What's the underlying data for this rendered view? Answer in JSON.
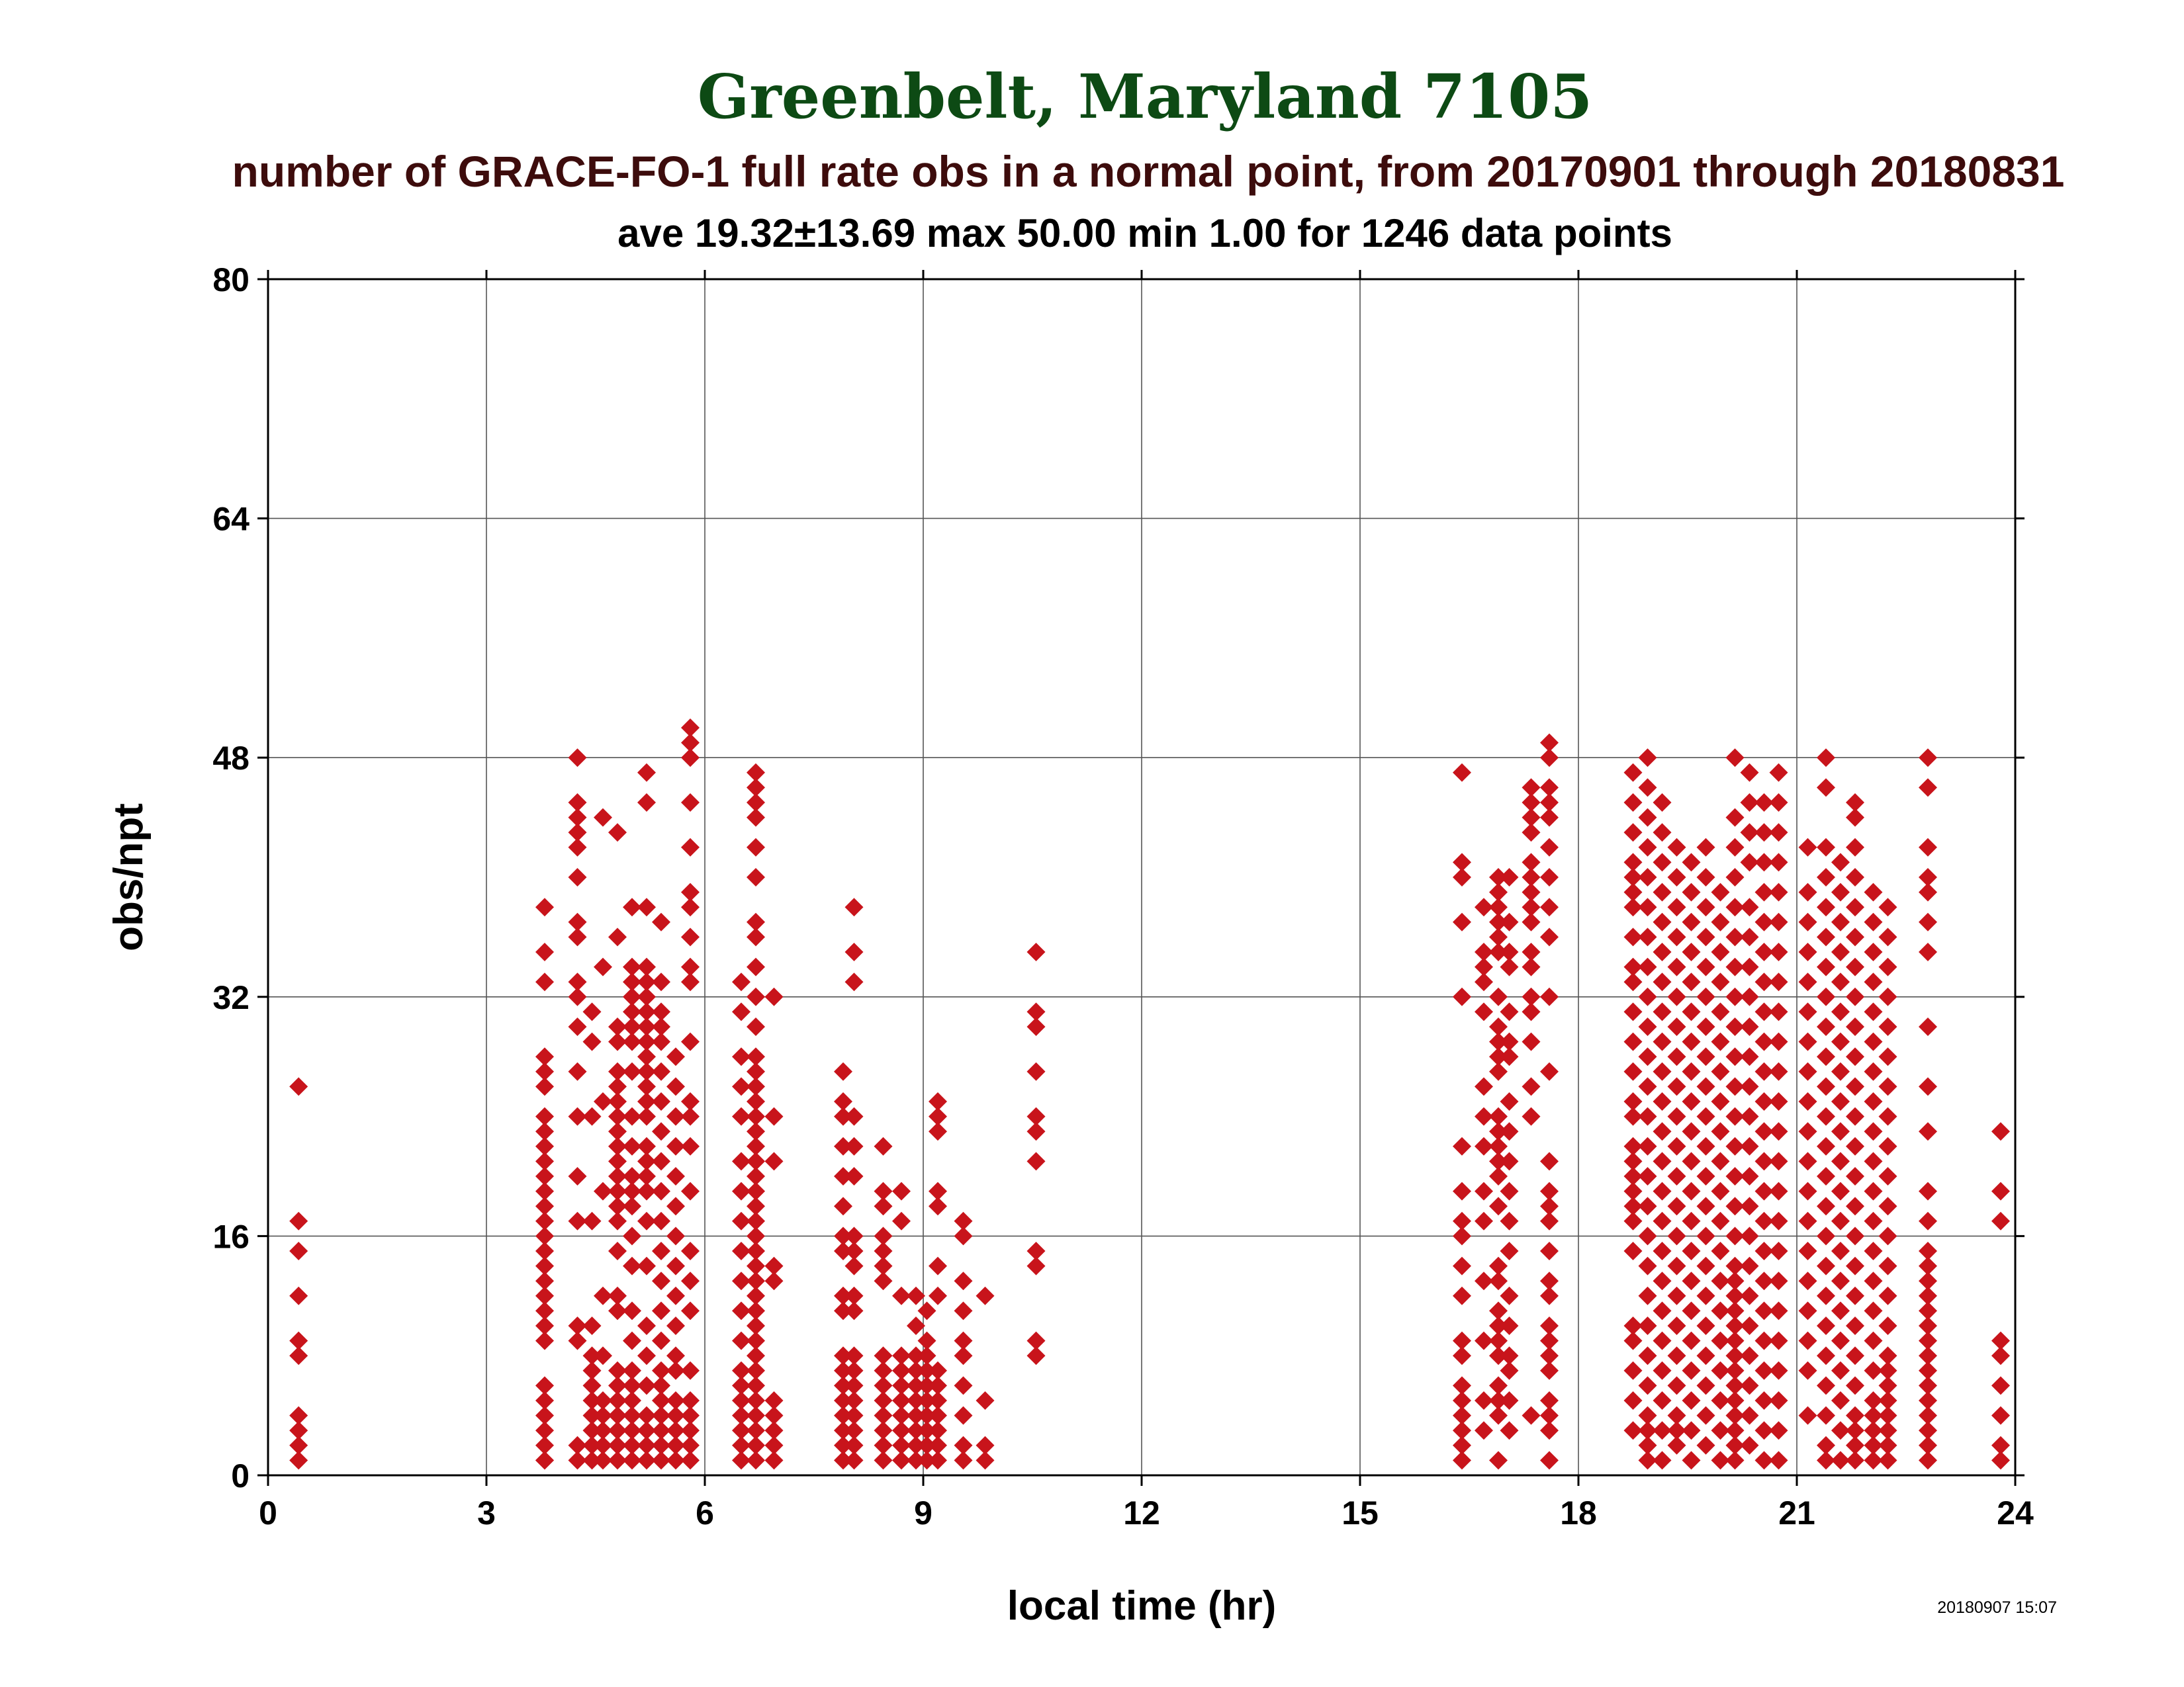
{
  "chart_data": {
    "type": "scatter",
    "title": "Greenbelt, Maryland 7105",
    "subtitle": "number of GRACE-FO-1 full rate obs in a normal point, from 20170901 through 20180831",
    "stats_line": "ave 19.32±13.69 max 50.00 min 1.00 for 1246 data points",
    "xlabel": "local time (hr)",
    "ylabel": "obs/npt",
    "xlim": [
      0,
      24
    ],
    "ylim": [
      0,
      80
    ],
    "xticks": [
      0,
      3,
      6,
      9,
      12,
      15,
      18,
      21,
      24
    ],
    "yticks": [
      0,
      16,
      32,
      48,
      64,
      80
    ],
    "grid": true,
    "marker_color": "#c8141b",
    "marker": "diamond",
    "timestamp": "20180907 15:07",
    "clusters": [
      {
        "x": 0.42,
        "y": [
          1,
          2,
          3,
          4,
          8,
          9,
          12,
          15,
          17,
          26
        ]
      },
      {
        "x": 3.8,
        "y": [
          1,
          1,
          2,
          3,
          4,
          5,
          6,
          9,
          10,
          11,
          12,
          13,
          14,
          15,
          16,
          17,
          18,
          19,
          20,
          21,
          22,
          23,
          24,
          26,
          27,
          28,
          33,
          35,
          38
        ]
      },
      {
        "x": 4.25,
        "y": [
          1,
          2,
          9,
          10,
          17,
          20,
          24,
          27,
          30,
          32,
          33,
          36,
          37,
          40,
          42,
          43,
          44,
          45,
          48
        ]
      },
      {
        "x": 4.45,
        "y": [
          1,
          2,
          3,
          4,
          5,
          6,
          7,
          8,
          10,
          17,
          24,
          29,
          31
        ]
      },
      {
        "x": 4.6,
        "y": [
          1,
          2,
          3,
          4,
          5,
          8,
          12,
          19,
          25,
          34,
          44
        ]
      },
      {
        "x": 4.8,
        "y": [
          1,
          2,
          3,
          4,
          5,
          6,
          7,
          11,
          12,
          15,
          17,
          18,
          19,
          20,
          21,
          22,
          23,
          24,
          25,
          26,
          27,
          29,
          30,
          36,
          43
        ]
      },
      {
        "x": 5.0,
        "y": [
          1,
          2,
          3,
          4,
          5,
          6,
          7,
          9,
          11,
          14,
          16,
          18,
          19,
          20,
          22,
          24,
          27,
          29,
          30,
          31,
          32,
          33,
          34,
          38
        ]
      },
      {
        "x": 5.2,
        "y": [
          1,
          2,
          3,
          4,
          6,
          8,
          10,
          14,
          17,
          19,
          20,
          21,
          22,
          24,
          25,
          26,
          27,
          28,
          29,
          30,
          31,
          32,
          33,
          34,
          38,
          45,
          47
        ]
      },
      {
        "x": 5.4,
        "y": [
          1,
          2,
          3,
          4,
          5,
          6,
          7,
          9,
          11,
          13,
          15,
          17,
          19,
          21,
          23,
          25,
          27,
          29,
          30,
          31,
          33,
          37
        ]
      },
      {
        "x": 5.6,
        "y": [
          1,
          2,
          3,
          4,
          5,
          7,
          8,
          10,
          12,
          14,
          16,
          18,
          20,
          22,
          24,
          26,
          28
        ]
      },
      {
        "x": 5.8,
        "y": [
          1,
          2,
          3,
          4,
          5,
          7,
          11,
          13,
          15,
          19,
          22,
          24,
          25,
          29,
          33,
          34,
          36,
          38,
          39,
          42,
          45,
          48,
          49,
          50
        ]
      },
      {
        "x": 6.5,
        "y": [
          1,
          2,
          3,
          4,
          5,
          6,
          7,
          9,
          11,
          13,
          15,
          17,
          19,
          21,
          24,
          26,
          28,
          31,
          33
        ]
      },
      {
        "x": 6.7,
        "y": [
          1,
          2,
          3,
          4,
          5,
          6,
          7,
          8,
          9,
          10,
          11,
          12,
          13,
          14,
          15,
          16,
          17,
          18,
          19,
          20,
          21,
          22,
          23,
          24,
          25,
          26,
          27,
          28,
          30,
          32,
          34,
          36,
          37,
          40,
          42,
          44,
          45,
          46,
          47
        ]
      },
      {
        "x": 6.95,
        "y": [
          1,
          2,
          3,
          4,
          5,
          13,
          14,
          21,
          24,
          32
        ]
      },
      {
        "x": 7.9,
        "y": [
          1,
          2,
          3,
          4,
          5,
          6,
          7,
          8,
          11,
          12,
          15,
          16,
          18,
          20,
          22,
          24,
          25,
          27
        ]
      },
      {
        "x": 8.05,
        "y": [
          1,
          2,
          3,
          4,
          5,
          6,
          7,
          8,
          11,
          12,
          14,
          15,
          16,
          20,
          22,
          24,
          33,
          35,
          38
        ]
      },
      {
        "x": 8.45,
        "y": [
          1,
          2,
          3,
          4,
          5,
          6,
          7,
          8,
          13,
          14,
          15,
          16,
          18,
          19,
          22
        ]
      },
      {
        "x": 8.7,
        "y": [
          1,
          2,
          3,
          4,
          5,
          6,
          7,
          8,
          12,
          17,
          19
        ]
      },
      {
        "x": 8.9,
        "y": [
          1,
          2,
          3,
          4,
          5,
          6,
          7,
          8,
          10,
          12
        ]
      },
      {
        "x": 9.05,
        "y": [
          1,
          2,
          3,
          4,
          5,
          6,
          7,
          8,
          9,
          11
        ]
      },
      {
        "x": 9.2,
        "y": [
          1,
          2,
          3,
          4,
          5,
          6,
          7,
          12,
          14,
          18,
          19,
          23,
          24,
          25
        ]
      },
      {
        "x": 9.55,
        "y": [
          1,
          2,
          4,
          6,
          8,
          9,
          11,
          13,
          16,
          17
        ]
      },
      {
        "x": 9.85,
        "y": [
          1,
          2,
          5,
          12
        ]
      },
      {
        "x": 10.55,
        "y": [
          8,
          9,
          14,
          15,
          21,
          23,
          24,
          27,
          30,
          31,
          35
        ]
      },
      {
        "x": 16.4,
        "y": [
          1,
          2,
          3,
          4,
          5,
          6,
          8,
          9,
          12,
          14,
          16,
          17,
          19,
          22,
          32,
          37,
          40,
          41,
          47
        ]
      },
      {
        "x": 16.7,
        "y": [
          3,
          5,
          9,
          13,
          17,
          19,
          22,
          24,
          26,
          31,
          33,
          34,
          35,
          38
        ]
      },
      {
        "x": 16.9,
        "y": [
          1,
          4,
          5,
          6,
          8,
          9,
          10,
          11,
          13,
          14,
          18,
          20,
          21,
          22,
          23,
          24,
          27,
          28,
          29,
          30,
          32,
          35,
          36,
          37,
          38,
          39,
          40
        ]
      },
      {
        "x": 17.05,
        "y": [
          3,
          5,
          7,
          8,
          10,
          12,
          15,
          17,
          19,
          21,
          23,
          25,
          28,
          29,
          31,
          34,
          35,
          37,
          40
        ]
      },
      {
        "x": 17.35,
        "y": [
          4,
          24,
          26,
          29,
          31,
          32,
          34,
          35,
          37,
          38,
          39,
          40,
          41,
          43,
          44,
          45,
          46
        ]
      },
      {
        "x": 17.6,
        "y": [
          1,
          3,
          4,
          5,
          7,
          8,
          9,
          10,
          12,
          13,
          15,
          17,
          18,
          19,
          21,
          27,
          32,
          36,
          38,
          40,
          42,
          44,
          45,
          46,
          48,
          49
        ]
      },
      {
        "x": 18.75,
        "y": [
          3,
          5,
          7,
          9,
          10,
          15,
          17,
          18,
          19,
          20,
          21,
          22,
          24,
          25,
          27,
          29,
          31,
          33,
          34,
          36,
          38,
          39,
          40,
          41,
          43,
          45,
          47
        ]
      },
      {
        "x": 18.95,
        "y": [
          1,
          2,
          3,
          4,
          6,
          8,
          10,
          12,
          14,
          16,
          18,
          20,
          22,
          24,
          26,
          28,
          30,
          32,
          34,
          36,
          38,
          40,
          42,
          44,
          46,
          48
        ]
      },
      {
        "x": 19.15,
        "y": [
          1,
          3,
          5,
          7,
          9,
          11,
          13,
          15,
          17,
          19,
          21,
          23,
          25,
          27,
          29,
          31,
          33,
          35,
          37,
          39,
          41,
          43,
          45
        ]
      },
      {
        "x": 19.35,
        "y": [
          2,
          3,
          4,
          6,
          8,
          10,
          12,
          14,
          16,
          18,
          20,
          22,
          24,
          26,
          28,
          30,
          32,
          34,
          36,
          38,
          40,
          42
        ]
      },
      {
        "x": 19.55,
        "y": [
          1,
          3,
          5,
          7,
          9,
          11,
          13,
          15,
          17,
          19,
          21,
          23,
          25,
          27,
          29,
          31,
          33,
          35,
          37,
          39,
          41
        ]
      },
      {
        "x": 19.75,
        "y": [
          2,
          4,
          6,
          8,
          10,
          12,
          14,
          16,
          18,
          20,
          22,
          24,
          26,
          28,
          30,
          32,
          34,
          36,
          38,
          40,
          42
        ]
      },
      {
        "x": 19.95,
        "y": [
          1,
          3,
          5,
          7,
          9,
          11,
          13,
          15,
          17,
          19,
          21,
          23,
          25,
          27,
          29,
          31,
          33,
          35,
          37,
          39
        ]
      },
      {
        "x": 20.15,
        "y": [
          1,
          2,
          3,
          4,
          5,
          6,
          7,
          8,
          9,
          10,
          11,
          12,
          13,
          14,
          16,
          18,
          20,
          22,
          24,
          26,
          28,
          30,
          32,
          34,
          36,
          38,
          40,
          42,
          44,
          48
        ]
      },
      {
        "x": 20.35,
        "y": [
          2,
          4,
          6,
          8,
          10,
          12,
          14,
          16,
          18,
          20,
          22,
          24,
          26,
          28,
          30,
          32,
          34,
          36,
          38,
          41,
          43,
          45,
          47
        ]
      },
      {
        "x": 20.55,
        "y": [
          1,
          3,
          5,
          7,
          9,
          11,
          13,
          15,
          17,
          19,
          21,
          23,
          25,
          27,
          29,
          31,
          33,
          35,
          37,
          39,
          41,
          43,
          45
        ]
      },
      {
        "x": 20.75,
        "y": [
          1,
          3,
          5,
          7,
          9,
          11,
          13,
          15,
          17,
          19,
          21,
          23,
          25,
          27,
          29,
          31,
          33,
          35,
          37,
          39,
          41,
          43,
          45,
          47
        ]
      },
      {
        "x": 21.15,
        "y": [
          4,
          7,
          9,
          11,
          13,
          15,
          17,
          19,
          21,
          23,
          25,
          27,
          29,
          31,
          33,
          35,
          37,
          39,
          42
        ]
      },
      {
        "x": 21.4,
        "y": [
          1,
          2,
          4,
          6,
          8,
          10,
          12,
          14,
          16,
          18,
          20,
          22,
          24,
          26,
          28,
          30,
          32,
          34,
          36,
          38,
          40,
          42,
          46,
          48
        ]
      },
      {
        "x": 21.6,
        "y": [
          1,
          3,
          5,
          7,
          9,
          11,
          13,
          15,
          17,
          19,
          21,
          23,
          25,
          27,
          29,
          31,
          33,
          35,
          37,
          39,
          41
        ]
      },
      {
        "x": 21.8,
        "y": [
          1,
          2,
          3,
          4,
          6,
          8,
          10,
          12,
          14,
          16,
          18,
          20,
          22,
          24,
          26,
          28,
          30,
          32,
          34,
          36,
          38,
          40,
          42,
          44,
          45
        ]
      },
      {
        "x": 22.05,
        "y": [
          1,
          2,
          3,
          4,
          5,
          7,
          9,
          11,
          13,
          15,
          17,
          19,
          21,
          23,
          25,
          27,
          29,
          31,
          33,
          35,
          37,
          39
        ]
      },
      {
        "x": 22.25,
        "y": [
          1,
          2,
          3,
          4,
          5,
          6,
          7,
          8,
          10,
          12,
          14,
          16,
          18,
          20,
          22,
          24,
          26,
          28,
          30,
          32,
          34,
          36,
          38
        ]
      },
      {
        "x": 22.8,
        "y": [
          1,
          2,
          3,
          4,
          5,
          6,
          7,
          8,
          9,
          10,
          11,
          12,
          13,
          14,
          15,
          17,
          19,
          23,
          26,
          30,
          35,
          37,
          39,
          40,
          42,
          46,
          48
        ]
      },
      {
        "x": 23.8,
        "y": [
          1,
          2,
          4,
          6,
          8,
          9,
          17,
          19,
          23
        ]
      }
    ]
  }
}
